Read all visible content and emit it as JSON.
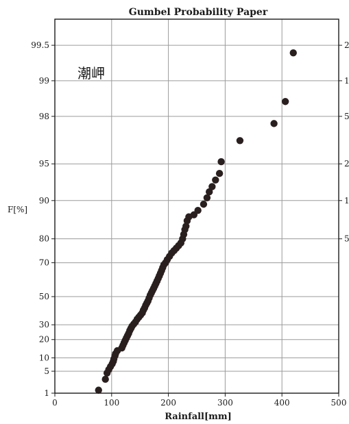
{
  "chart_data": {
    "type": "scatter",
    "title": "Gumbel Probability Paper",
    "xlabel": "Rainfall[mm]",
    "ylabel": "F[%]",
    "annotation": "潮岬",
    "xlim": [
      0,
      500
    ],
    "x_ticks": [
      0,
      100,
      200,
      300,
      400,
      500
    ],
    "y_scale": "gumbel",
    "ylim_percent": [
      1,
      99.7
    ],
    "y_ticks": [
      1,
      5,
      10,
      20,
      30,
      50,
      70,
      80,
      90,
      95,
      98,
      99,
      99.5
    ],
    "y_tick_labels": [
      "1",
      "5",
      "10",
      "20",
      "30",
      "50",
      "70",
      "80",
      "90",
      "95",
      "98",
      "99",
      "99.5"
    ],
    "right_tick_labels": [
      {
        "label": "2",
        "at_percent": 99.5
      },
      {
        "label": "1",
        "at_percent": 99
      },
      {
        "label": "5",
        "at_percent": 98
      },
      {
        "label": "2",
        "at_percent": 95
      },
      {
        "label": "1",
        "at_percent": 90
      },
      {
        "label": "5",
        "at_percent": 80
      }
    ],
    "grid": true,
    "series": [
      {
        "points": [
          [
            77,
            1.3
          ],
          [
            89,
            3.0
          ],
          [
            92,
            4.5
          ],
          [
            95,
            5.5
          ],
          [
            98,
            6.5
          ],
          [
            101,
            7.5
          ],
          [
            103,
            8.5
          ],
          [
            104,
            9.5
          ],
          [
            106,
            11
          ],
          [
            107,
            12
          ],
          [
            110,
            13.5
          ],
          [
            118,
            15
          ],
          [
            120,
            16.5
          ],
          [
            122,
            18
          ],
          [
            124,
            19.5
          ],
          [
            126,
            21
          ],
          [
            128,
            22.5
          ],
          [
            130,
            24
          ],
          [
            132,
            26
          ],
          [
            134,
            27.5
          ],
          [
            136,
            29
          ],
          [
            139,
            30.5
          ],
          [
            142,
            32
          ],
          [
            145,
            34
          ],
          [
            148,
            35.5
          ],
          [
            151,
            37
          ],
          [
            154,
            38.5
          ],
          [
            156,
            40.5
          ],
          [
            158,
            42
          ],
          [
            160,
            44
          ],
          [
            162,
            45.5
          ],
          [
            164,
            47
          ],
          [
            166,
            49
          ],
          [
            168,
            51
          ],
          [
            170,
            52.5
          ],
          [
            172,
            54
          ],
          [
            174,
            55.5
          ],
          [
            176,
            57
          ],
          [
            178,
            58.5
          ],
          [
            180,
            60
          ],
          [
            182,
            61.5
          ],
          [
            184,
            63
          ],
          [
            186,
            64.5
          ],
          [
            188,
            66
          ],
          [
            190,
            67.5
          ],
          [
            192,
            69
          ],
          [
            195,
            70
          ],
          [
            198,
            71.5
          ],
          [
            202,
            73
          ],
          [
            206,
            74.5
          ],
          [
            210,
            75.5
          ],
          [
            214,
            76.5
          ],
          [
            218,
            77.5
          ],
          [
            222,
            78.5
          ],
          [
            225,
            80
          ],
          [
            227,
            81.5
          ],
          [
            229,
            83
          ],
          [
            231,
            84
          ],
          [
            233,
            85.5
          ],
          [
            236,
            86.5
          ],
          [
            245,
            87
          ],
          [
            252,
            88
          ],
          [
            262,
            89.3
          ],
          [
            268,
            90.5
          ],
          [
            272,
            91.5
          ],
          [
            277,
            92.3
          ],
          [
            283,
            93.2
          ],
          [
            290,
            94
          ],
          [
            293,
            95.2
          ],
          [
            326,
            96.8
          ],
          [
            386,
            97.7
          ],
          [
            406,
            98.5
          ],
          [
            420,
            99.42
          ]
        ]
      }
    ]
  }
}
